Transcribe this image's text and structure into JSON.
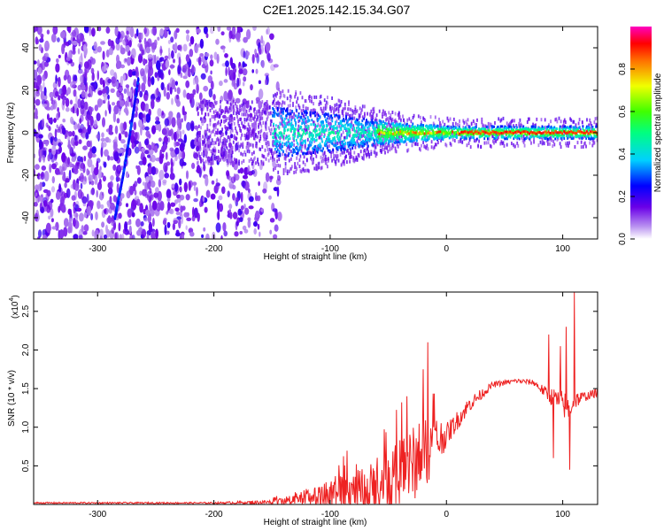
{
  "title": "C2E1.2025.142.15.34.G07",
  "colors": {
    "snr_line": "#ee2222",
    "frame": "#000000"
  },
  "chart_data": [
    {
      "type": "heatmap",
      "name": "spectrogram",
      "xlabel": "Height of straight line (km)",
      "ylabel": "Frequency (Hz)",
      "xlim": [
        -355,
        130
      ],
      "ylim": [
        -50,
        50
      ],
      "xticks": [
        {
          "value": -300,
          "label": "-300"
        },
        {
          "value": -200,
          "label": "-200"
        },
        {
          "value": -100,
          "label": "-100"
        },
        {
          "value": 0,
          "label": "0"
        },
        {
          "value": 100,
          "label": "100"
        }
      ],
      "yticks": [
        {
          "value": -40,
          "label": "-40"
        },
        {
          "value": -20,
          "label": "-20"
        },
        {
          "value": 0,
          "label": "0"
        },
        {
          "value": 20,
          "label": "20"
        },
        {
          "value": 40,
          "label": "40"
        }
      ],
      "colorbar": {
        "label": "Normalized spectral amplitude",
        "range": [
          0,
          1
        ],
        "colormap": "rainbow",
        "ticks": [
          {
            "value": 0.0,
            "label": "0.0"
          },
          {
            "value": 0.2,
            "label": "0.2"
          },
          {
            "value": 0.4,
            "label": "0.4"
          },
          {
            "value": 0.6,
            "label": "0.6"
          },
          {
            "value": 0.8,
            "label": "0.8"
          }
        ]
      },
      "features": {
        "noise_region_x": [
          -355,
          -150
        ],
        "signal_band_center_hz": 0,
        "signal_band_halfwidth_hz": [
          [
            -150,
            12
          ],
          [
            -100,
            9
          ],
          [
            -50,
            5
          ],
          [
            0,
            3
          ],
          [
            130,
            3
          ]
        ],
        "streak_points": [
          [
            -285,
            -40
          ],
          [
            -278,
            -20
          ],
          [
            -272,
            0
          ],
          [
            -265,
            25
          ]
        ]
      }
    },
    {
      "type": "line",
      "name": "snr",
      "xlabel": "Height of straight line (km)",
      "ylabel": "SNR (10 * v/v)",
      "multiplier_label": "(x10",
      "multiplier_exp": "4",
      "xlim": [
        -355,
        130
      ],
      "ylim": [
        0,
        2.75
      ],
      "xticks": [
        {
          "value": -300,
          "label": "-300"
        },
        {
          "value": -200,
          "label": "-200"
        },
        {
          "value": -100,
          "label": "-100"
        },
        {
          "value": 0,
          "label": "0"
        },
        {
          "value": 100,
          "label": "100"
        }
      ],
      "yticks": [
        {
          "value": 0.5,
          "label": "0.5"
        },
        {
          "value": 1.0,
          "label": "1.0"
        },
        {
          "value": 1.5,
          "label": "1.5"
        },
        {
          "value": 2.0,
          "label": "2.0"
        },
        {
          "value": 2.5,
          "label": "2.5"
        }
      ],
      "envelope": {
        "x": [
          -355,
          -200,
          -150,
          -130,
          -100,
          -75,
          -60,
          -40,
          -30,
          -10,
          0,
          20,
          40,
          60,
          75,
          85,
          95,
          105,
          110,
          120,
          130
        ],
        "baseline": [
          0.02,
          0.02,
          0.03,
          0.06,
          0.12,
          0.15,
          0.25,
          0.4,
          0.5,
          0.8,
          0.9,
          1.3,
          1.55,
          1.6,
          1.58,
          1.45,
          1.35,
          1.25,
          1.35,
          1.4,
          1.45
        ],
        "spread": [
          0.01,
          0.01,
          0.03,
          0.08,
          0.2,
          0.3,
          0.35,
          0.45,
          0.5,
          0.4,
          0.15,
          0.1,
          0.04,
          0.03,
          0.04,
          0.08,
          0.15,
          0.2,
          0.12,
          0.06,
          0.05
        ]
      },
      "spikes": [
        {
          "x": -16,
          "y": 2.1
        },
        {
          "x": -20,
          "y": 1.75
        },
        {
          "x": -34,
          "y": 1.4
        },
        {
          "x": 88,
          "y": 2.2
        },
        {
          "x": 92,
          "y": 0.6
        },
        {
          "x": 98,
          "y": 2.05
        },
        {
          "x": 103,
          "y": 2.3
        },
        {
          "x": 106,
          "y": 0.45
        },
        {
          "x": 110,
          "y": 2.75
        }
      ]
    }
  ]
}
